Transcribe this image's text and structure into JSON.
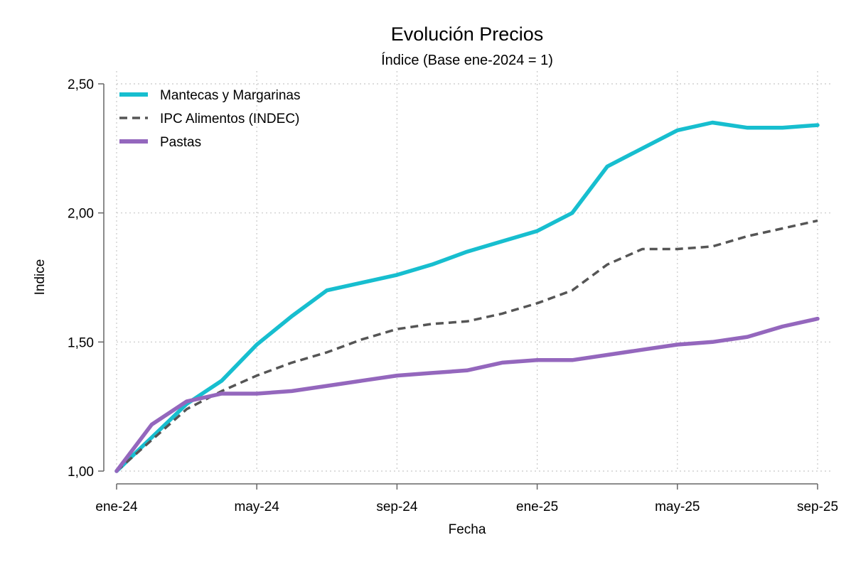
{
  "chart_data": {
    "type": "line",
    "title": "Evolución Precios",
    "subtitle": "Índice (Base ene-2024 = 1)",
    "xlabel": "Fecha",
    "ylabel": "Indice",
    "ylim": [
      1.0,
      2.5
    ],
    "yticks": [
      1.0,
      1.5,
      2.0,
      2.5
    ],
    "ytick_labels": [
      "1,00",
      "1,50",
      "2,00",
      "2,50"
    ],
    "xtick_labels": [
      "ene-24",
      "may-24",
      "sep-24",
      "ene-25",
      "may-25",
      "sep-25"
    ],
    "x": [
      "ene-24",
      "feb-24",
      "mar-24",
      "abr-24",
      "may-24",
      "jun-24",
      "jul-24",
      "ago-24",
      "sep-24",
      "oct-24",
      "nov-24",
      "dic-24",
      "ene-25",
      "feb-25",
      "mar-25",
      "abr-25",
      "may-25",
      "jun-25",
      "jul-25",
      "ago-25",
      "sep-25"
    ],
    "grid": true,
    "legend_position": "top-left",
    "series": [
      {
        "name": "Mantecas y Margarinas",
        "color": "#17becf",
        "style": "solid",
        "values": [
          1.0,
          1.13,
          1.26,
          1.35,
          1.49,
          1.6,
          1.7,
          1.73,
          1.76,
          1.8,
          1.85,
          1.89,
          1.93,
          2.0,
          2.18,
          2.25,
          2.32,
          2.35,
          2.33,
          2.33,
          2.34
        ]
      },
      {
        "name": "IPC Alimentos (INDEC)",
        "color": "#555555",
        "style": "dashed",
        "values": [
          1.0,
          1.12,
          1.24,
          1.31,
          1.37,
          1.42,
          1.46,
          1.51,
          1.55,
          1.57,
          1.58,
          1.61,
          1.65,
          1.7,
          1.8,
          1.86,
          1.86,
          1.87,
          1.91,
          1.94,
          1.97
        ]
      },
      {
        "name": "Pastas",
        "color": "#9467bd",
        "style": "solid",
        "values": [
          1.0,
          1.18,
          1.27,
          1.3,
          1.3,
          1.31,
          1.33,
          1.35,
          1.37,
          1.38,
          1.39,
          1.42,
          1.43,
          1.43,
          1.45,
          1.47,
          1.49,
          1.5,
          1.52,
          1.56,
          1.59
        ]
      }
    ]
  }
}
